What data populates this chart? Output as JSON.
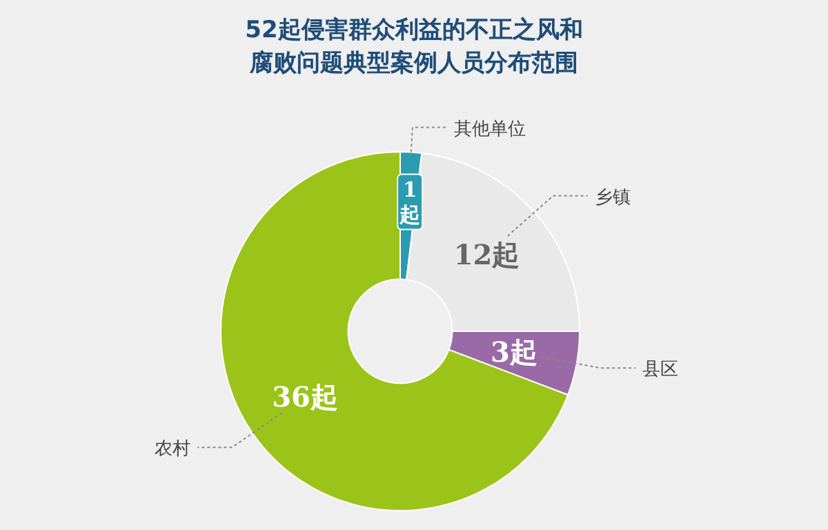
{
  "chart_data": {
    "type": "donut",
    "title": "52起侵害群众利益的不正之风和腐败问题典型案例人员分布范围",
    "categories": [
      "其他单位",
      "乡镇",
      "县区",
      "农村"
    ],
    "values": [
      1,
      12,
      3,
      36
    ],
    "colors": [
      "#2a9cb0",
      "#e9e9e9",
      "#9a6aa6",
      "#9cc31a"
    ],
    "value_labels": [
      "1起",
      "12起",
      "3起",
      "36起"
    ]
  }
}
